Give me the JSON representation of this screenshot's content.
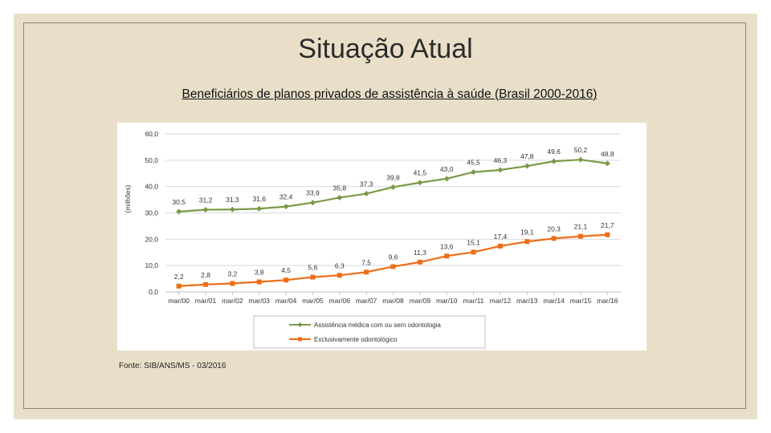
{
  "slide": {
    "title": "Situação Atual",
    "source": "Fonte: SIB/ANS/MS - 03/2016"
  },
  "colors": {
    "background": "#e9dfc9",
    "series_green": "#7a9a45",
    "series_orange": "#ee6d17",
    "grid": "#d9d9d9"
  },
  "chart_data": {
    "type": "line",
    "title": "Beneficiários de planos privados de assistência à saúde (Brasil 2000-2016)",
    "ylabel": "(milhões)",
    "xlabel": "",
    "ylim": [
      0,
      60
    ],
    "yticks": [
      "0,0",
      "10,0",
      "20,0",
      "30,0",
      "40,0",
      "50,0",
      "60,0"
    ],
    "ytick_values": [
      0,
      10,
      20,
      30,
      40,
      50,
      60
    ],
    "grid": true,
    "legend_position": "bottom",
    "categories": [
      "mar/00",
      "mar/01",
      "mar/02",
      "mar/03",
      "mar/04",
      "mar/05",
      "mar/06",
      "mar/07",
      "mar/08",
      "mar/09",
      "mar/10",
      "mar/11",
      "mar/12",
      "mar/13",
      "mar/14",
      "mar/15",
      "mar/16"
    ],
    "series": [
      {
        "name": "Assistência médica com ou sem odontologia",
        "color": "#7a9a45",
        "marker": "diamond",
        "values": [
          30.5,
          31.2,
          31.3,
          31.6,
          32.4,
          33.9,
          35.8,
          37.3,
          39.8,
          41.5,
          43.0,
          45.5,
          46.3,
          47.8,
          49.6,
          50.2,
          48.8
        ],
        "labels": [
          "30,5",
          "31,2",
          "31,3",
          "31,6",
          "32,4",
          "33,9",
          "35,8",
          "37,3",
          "39,8",
          "41,5",
          "43,0",
          "45,5",
          "46,3",
          "47,8",
          "49,6",
          "50,2",
          "48,8"
        ]
      },
      {
        "name": "Exclusivamente odontológico",
        "color": "#ee6d17",
        "marker": "square",
        "values": [
          2.2,
          2.8,
          3.2,
          3.8,
          4.5,
          5.6,
          6.3,
          7.5,
          9.6,
          11.3,
          13.6,
          15.1,
          17.4,
          19.1,
          20.3,
          21.1,
          21.7
        ],
        "labels": [
          "2,2",
          "2,8",
          "3,2",
          "3,8",
          "4,5",
          "5,6",
          "6,3",
          "7,5",
          "9,6",
          "11,3",
          "13,6",
          "15,1",
          "17,4",
          "19,1",
          "20,3",
          "21,1",
          "21,7"
        ]
      }
    ]
  }
}
